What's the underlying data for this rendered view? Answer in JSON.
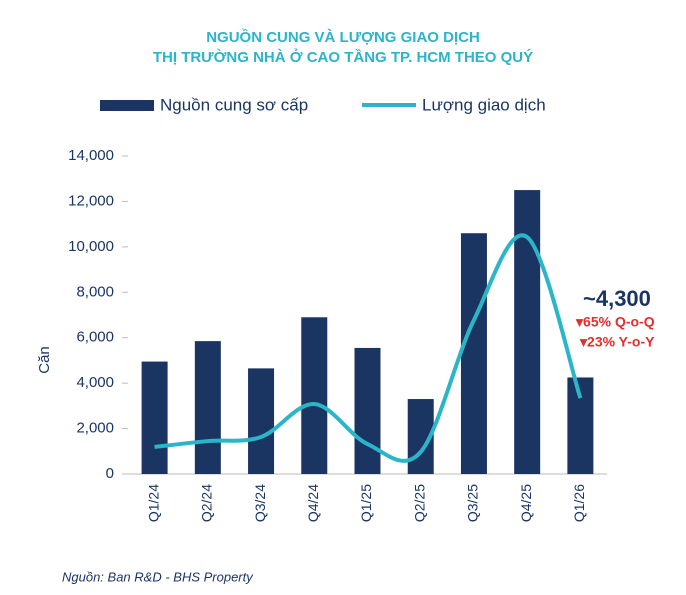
{
  "chart_data": {
    "type": "combo",
    "title": [
      "NGUỒN CUNG VÀ LƯỢNG GIAO DỊCH",
      "THỊ TRƯỜNG NHÀ Ở CAO TẦNG TP. HCM THEO QUÝ"
    ],
    "y_label": "Căn",
    "categories": [
      "Q1/24",
      "Q2/24",
      "Q3/24",
      "Q4/24",
      "Q1/25",
      "Q2/25",
      "Q3/25",
      "Q4/25",
      "Q1/26"
    ],
    "series": [
      {
        "name": "Nguồn cung sơ cấp",
        "type": "bar",
        "color": "#1b3563",
        "values": [
          4950,
          5850,
          4650,
          6900,
          5550,
          3300,
          10600,
          12500,
          4250
        ]
      },
      {
        "name": "Lượng giao dịch",
        "type": "line",
        "color": "#2bb5c9",
        "values": [
          1190,
          1450,
          1630,
          3080,
          1320,
          970,
          6780,
          10430,
          3340
        ]
      }
    ],
    "ylim": [
      0,
      14000
    ],
    "yticks": [
      0,
      {
        "value": 2000,
        "label": "2,000"
      },
      {
        "value": 4000,
        "label": "4,000"
      },
      {
        "value": 6000,
        "label": "6,000"
      },
      {
        "value": 8000,
        "label": "8,000"
      },
      {
        "value": 10000,
        "label": "10,000"
      },
      {
        "value": 12000,
        "label": "12,000"
      },
      {
        "value": 14000,
        "label": "14,000"
      }
    ],
    "annotations": [
      "~4,300",
      "▾65% Q-o-Q",
      "▾23% Y-o-Y"
    ],
    "source": "Nguồn: Ban R&D - BHS Property"
  }
}
